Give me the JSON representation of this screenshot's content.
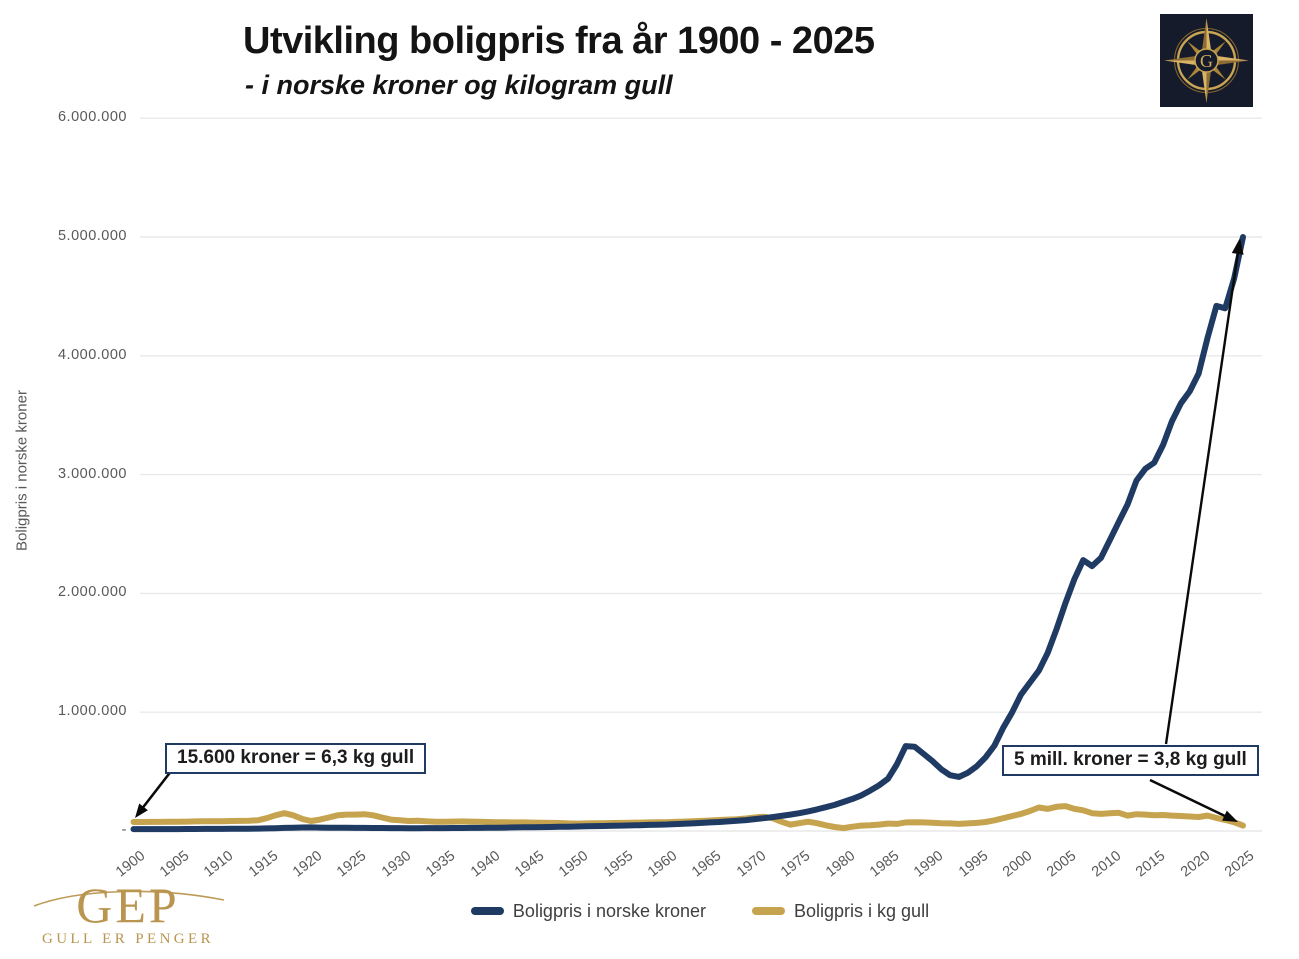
{
  "header": {
    "title": "Utvikling boligpris fra år 1900 - 2025",
    "subtitle": "- i norske kroner og kilogram gull"
  },
  "y_axis": {
    "title": "Boligpris i norske kroner",
    "ticks": [
      "-",
      "1.000.000",
      "2.000.000",
      "3.000.000",
      "4.000.000",
      "5.000.000",
      "6.000.000"
    ]
  },
  "x_axis": {
    "ticks": [
      "1900",
      "1905",
      "1910",
      "1915",
      "1920",
      "1925",
      "1930",
      "1935",
      "1940",
      "1945",
      "1950",
      "1955",
      "1960",
      "1965",
      "1970",
      "1975",
      "1980",
      "1985",
      "1990",
      "1995",
      "2000",
      "2005",
      "2010",
      "2015",
      "2020",
      "2025"
    ]
  },
  "legend": [
    {
      "label": "Boligpris i norske kroner",
      "color": "#1f3a63"
    },
    {
      "label": "Boligpris i kg gull",
      "color": "#c6a44f"
    }
  ],
  "annotations": [
    {
      "text": "15.600 kroner = 6,3 kg gull"
    },
    {
      "text": "5 mill. kroner = 3,8 kg gull"
    }
  ],
  "branding": {
    "logo_monogram": "G",
    "footer_logo_text": "GEP",
    "footer_logo_subtext": "GULL ER PENGER"
  },
  "colors": {
    "nok_line": "#1f3a63",
    "gold_line": "#c6a44f",
    "grid": "#e9e9e9",
    "axis_text": "#595959",
    "annotation_border": "#1f3a63",
    "arrow": "#0a0a0a",
    "brand_gold": "#b9954f",
    "logo_background": "#161b2c"
  },
  "chart_data": {
    "type": "line",
    "title": "Utvikling boligpris fra år 1900 - 2025",
    "subtitle": "- i norske kroner og kilogram gull",
    "xlabel": "",
    "ylabel": "Boligpris i norske kroner",
    "ylim_nok": [
      0,
      6000000
    ],
    "grid": "horizontal only",
    "legend_position": "bottom",
    "note": "Gold series is plotted on a hidden secondary scale; values are estimates read from the chart. Endpoints labelled on chart: 1900 = 15.600 kroner = 6,3 kg gull; 2025 = 5 mill. kroner = 3,8 kg gull.",
    "gold_kg_to_nok_axis_scale": 12000,
    "x_start": 1900,
    "x_step": 1,
    "years": [
      1900,
      1901,
      1902,
      1903,
      1904,
      1905,
      1906,
      1907,
      1908,
      1909,
      1910,
      1911,
      1912,
      1913,
      1914,
      1915,
      1916,
      1917,
      1918,
      1919,
      1920,
      1921,
      1922,
      1923,
      1924,
      1925,
      1926,
      1927,
      1928,
      1929,
      1930,
      1931,
      1932,
      1933,
      1934,
      1935,
      1936,
      1937,
      1938,
      1939,
      1940,
      1941,
      1942,
      1943,
      1944,
      1945,
      1946,
      1947,
      1948,
      1949,
      1950,
      1951,
      1952,
      1953,
      1954,
      1955,
      1956,
      1957,
      1958,
      1959,
      1960,
      1961,
      1962,
      1963,
      1964,
      1965,
      1966,
      1967,
      1968,
      1969,
      1970,
      1971,
      1972,
      1973,
      1974,
      1975,
      1976,
      1977,
      1978,
      1979,
      1980,
      1981,
      1982,
      1983,
      1984,
      1985,
      1986,
      1987,
      1988,
      1989,
      1990,
      1991,
      1992,
      1993,
      1994,
      1995,
      1996,
      1997,
      1998,
      1999,
      2000,
      2001,
      2002,
      2003,
      2004,
      2005,
      2006,
      2007,
      2008,
      2009,
      2010,
      2011,
      2012,
      2013,
      2014,
      2015,
      2016,
      2017,
      2018,
      2019,
      2020,
      2021,
      2022,
      2023,
      2024,
      2025
    ],
    "series": [
      {
        "name": "Boligpris i norske kroner",
        "unit": "NOK",
        "color": "#1f3a63",
        "values": [
          15600,
          15800,
          16000,
          16100,
          16200,
          16400,
          16700,
          17000,
          17300,
          17600,
          18000,
          18400,
          18900,
          19400,
          20000,
          21500,
          23500,
          26000,
          28000,
          29500,
          30000,
          29000,
          28000,
          27500,
          27000,
          26500,
          26000,
          25500,
          25000,
          24500,
          24000,
          23500,
          23800,
          24000,
          24300,
          24600,
          25000,
          25500,
          26000,
          26500,
          27000,
          28000,
          29000,
          30000,
          31000,
          32000,
          33000,
          34000,
          35000,
          36500,
          38000,
          39500,
          41000,
          42500,
          44000,
          45500,
          47000,
          49000,
          51000,
          53000,
          55000,
          58000,
          61000,
          64000,
          68000,
          72000,
          76000,
          81000,
          86000,
          92000,
          100000,
          108000,
          117000,
          127000,
          138000,
          150000,
          165000,
          182000,
          200000,
          220000,
          245000,
          270000,
          300000,
          340000,
          385000,
          440000,
          560000,
          715000,
          710000,
          650000,
          590000,
          520000,
          470000,
          455000,
          490000,
          545000,
          620000,
          720000,
          870000,
          1000000,
          1150000,
          1250000,
          1350000,
          1500000,
          1700000,
          1920000,
          2120000,
          2280000,
          2230000,
          2300000,
          2450000,
          2600000,
          2750000,
          2950000,
          3050000,
          3100000,
          3250000,
          3450000,
          3600000,
          3700000,
          3850000,
          4150000,
          4420000,
          4400000,
          4650000,
          5000000
        ]
      },
      {
        "name": "Boligpris i kg gull",
        "unit": "kg gull",
        "color": "#c6a44f",
        "axis": "hidden-secondary",
        "values": [
          6.3,
          6.3,
          6.4,
          6.4,
          6.5,
          6.5,
          6.6,
          6.7,
          6.8,
          6.8,
          6.9,
          7.0,
          7.1,
          7.2,
          7.5,
          9.0,
          11.0,
          12.5,
          11.0,
          8.5,
          7.0,
          8.0,
          9.5,
          11.0,
          11.5,
          11.5,
          11.8,
          11.0,
          9.5,
          8.0,
          7.5,
          7.0,
          7.2,
          6.8,
          6.5,
          6.5,
          6.6,
          6.7,
          6.6,
          6.5,
          6.3,
          6.2,
          6.1,
          6.0,
          6.0,
          5.9,
          5.8,
          5.7,
          5.6,
          5.3,
          5.2,
          5.3,
          5.4,
          5.5,
          5.6,
          5.7,
          5.8,
          5.9,
          6.0,
          6.1,
          6.2,
          6.4,
          6.6,
          6.8,
          7.1,
          7.4,
          7.7,
          8.0,
          8.3,
          8.8,
          9.5,
          10.0,
          9.0,
          6.5,
          4.5,
          5.5,
          6.5,
          5.5,
          4.0,
          2.8,
          2.0,
          3.0,
          3.8,
          4.0,
          4.5,
          5.2,
          5.0,
          6.0,
          6.2,
          6.0,
          5.8,
          5.5,
          5.3,
          5.0,
          5.3,
          5.7,
          6.3,
          7.5,
          9.0,
          10.5,
          12.0,
          14.0,
          16.5,
          15.5,
          17.0,
          17.5,
          15.5,
          14.5,
          12.5,
          12.0,
          12.5,
          12.8,
          10.8,
          11.8,
          11.5,
          11.0,
          11.2,
          10.8,
          10.5,
          10.2,
          9.8,
          10.8,
          9.2,
          7.8,
          6.2,
          3.8
        ]
      }
    ],
    "key_points": [
      {
        "year": 1900,
        "nok": 15600,
        "kg_gull": 6.3
      },
      {
        "year": 2025,
        "nok": 5000000,
        "kg_gull": 3.8
      }
    ]
  }
}
